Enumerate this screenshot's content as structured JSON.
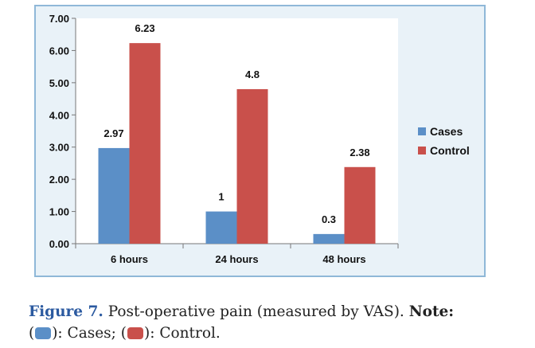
{
  "chart_data": {
    "type": "bar",
    "categories": [
      "6 hours",
      "24 hours",
      "48 hours"
    ],
    "series": [
      {
        "name": "Cases",
        "values": [
          2.97,
          1,
          0.3
        ],
        "labels": [
          "2.97",
          "1",
          "0.3"
        ],
        "color": "#5b8fc7"
      },
      {
        "name": "Control",
        "values": [
          6.23,
          4.8,
          2.38
        ],
        "labels": [
          "6.23",
          "4.8",
          "2.38"
        ],
        "color": "#c9504b"
      }
    ],
    "ylim": [
      0,
      7
    ],
    "yticks": [
      "0.00",
      "1.00",
      "2.00",
      "3.00",
      "4.00",
      "5.00",
      "6.00",
      "7.00"
    ],
    "legend_position": "right",
    "grid": false
  },
  "caption": {
    "label": "Figure 7.",
    "text": " Post-operative pain (measured by VAS). ",
    "note_label": "Note:",
    "open1": "(",
    "close1": "): Cases; (",
    "close2": "): Control."
  },
  "colors": {
    "frame_bg": "#e9f2f8",
    "frame_border": "#8fb8d8",
    "plot_bg": "#ffffff",
    "caption_label": "#2b5aa0"
  }
}
